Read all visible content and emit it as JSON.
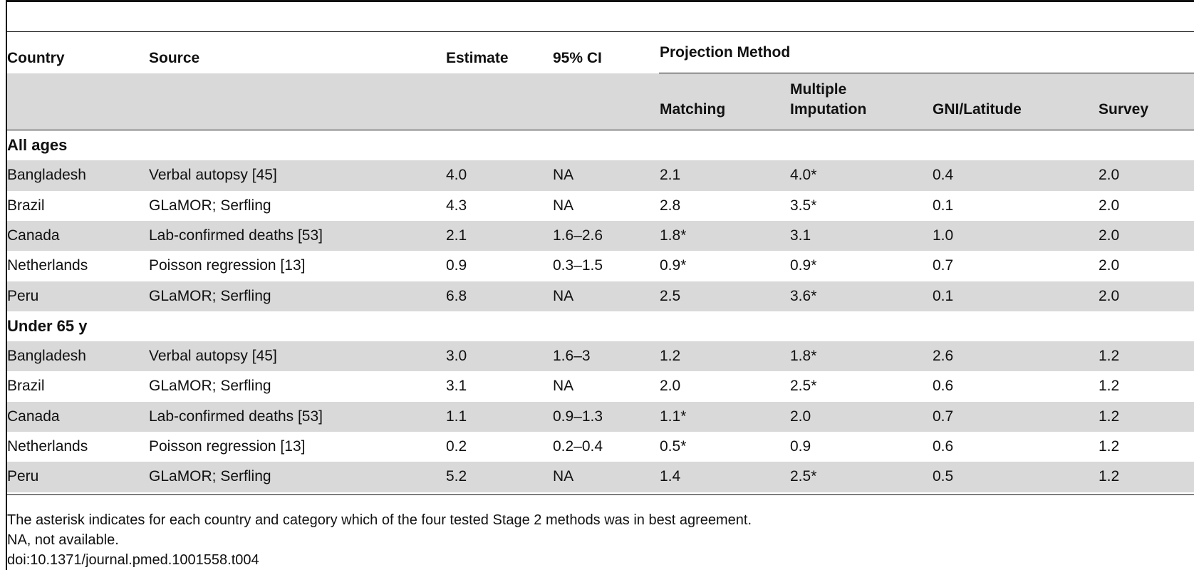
{
  "table": {
    "headers": {
      "country": "Country",
      "source": "Source",
      "estimate": "Estimate",
      "ci": "95% CI",
      "projection": "Projection Method",
      "matching": "Matching",
      "multiple_line1": "Multiple",
      "multiple_line2": "Imputation",
      "gni": "GNI/Latitude",
      "survey": "Survey"
    },
    "sections": [
      {
        "title": "All ages",
        "rows": [
          {
            "country": "Bangladesh",
            "source": "Verbal autopsy [45]",
            "estimate": "4.0",
            "ci": "NA",
            "matching": "2.1",
            "multiple": "4.0*",
            "gni": "0.4",
            "survey": "2.0"
          },
          {
            "country": "Brazil",
            "source": "GLaMOR; Serfling",
            "estimate": "4.3",
            "ci": "NA",
            "matching": "2.8",
            "multiple": "3.5*",
            "gni": "0.1",
            "survey": "2.0"
          },
          {
            "country": "Canada",
            "source": "Lab-confirmed deaths [53]",
            "estimate": "2.1",
            "ci": "1.6–2.6",
            "matching": "1.8*",
            "multiple": "3.1",
            "gni": "1.0",
            "survey": "2.0"
          },
          {
            "country": "Netherlands",
            "source": "Poisson regression [13]",
            "estimate": "0.9",
            "ci": "0.3–1.5",
            "matching": "0.9*",
            "multiple": "0.9*",
            "gni": "0.7",
            "survey": "2.0"
          },
          {
            "country": "Peru",
            "source": "GLaMOR; Serfling",
            "estimate": "6.8",
            "ci": "NA",
            "matching": "2.5",
            "multiple": "3.6*",
            "gni": "0.1",
            "survey": "2.0"
          }
        ]
      },
      {
        "title": "Under 65 y",
        "rows": [
          {
            "country": "Bangladesh",
            "source": "Verbal autopsy [45]",
            "estimate": "3.0",
            "ci": "1.6–3",
            "matching": "1.2",
            "multiple": "1.8*",
            "gni": "2.6",
            "survey": "1.2"
          },
          {
            "country": "Brazil",
            "source": "GLaMOR; Serfling",
            "estimate": "3.1",
            "ci": "NA",
            "matching": "2.0",
            "multiple": "2.5*",
            "gni": "0.6",
            "survey": "1.2"
          },
          {
            "country": "Canada",
            "source": "Lab-confirmed deaths [53]",
            "estimate": "1.1",
            "ci": "0.9–1.3",
            "matching": "1.1*",
            "multiple": "2.0",
            "gni": "0.7",
            "survey": "1.2"
          },
          {
            "country": "Netherlands",
            "source": "Poisson regression [13]",
            "estimate": "0.2",
            "ci": "0.2–0.4",
            "matching": "0.5*",
            "multiple": "0.9",
            "gni": "0.6",
            "survey": "1.2"
          },
          {
            "country": "Peru",
            "source": "GLaMOR; Serfling",
            "estimate": "5.2",
            "ci": "NA",
            "matching": "1.4",
            "multiple": "2.5*",
            "gni": "0.5",
            "survey": "1.2"
          }
        ]
      }
    ]
  },
  "footnotes": {
    "asterisk": "The asterisk indicates for each country and category which of the four tested Stage 2 methods was in best agreement.",
    "na": "NA, not available.",
    "doi": "doi:10.1371/journal.pmed.1001558.t004"
  },
  "colors": {
    "band": "#d9d9d9",
    "rule": "#111111"
  }
}
